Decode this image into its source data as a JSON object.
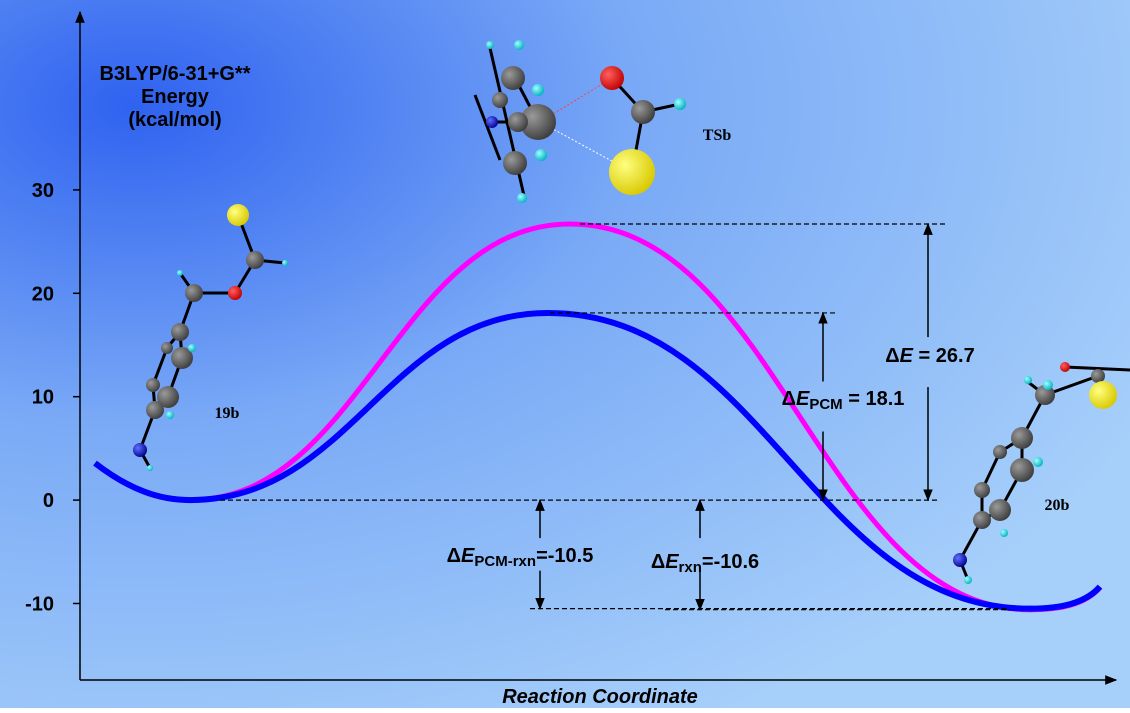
{
  "chart_data": {
    "type": "line",
    "y_label": [
      "B3LYP/6-31+G**",
      "Energy",
      "(kcal/mol)"
    ],
    "x_label": "Reaction Coordinate",
    "categories": [
      "19b",
      "TSb",
      "20b"
    ],
    "series": [
      {
        "color": "#ff00ff",
        "values": [
          0,
          26.7,
          -10.6
        ],
        "value_labels": [
          null,
          "ΔE = 26.7",
          "ΔErxn=-10.6"
        ]
      },
      {
        "color": "#0000ff",
        "values": [
          0,
          18.1,
          -10.5
        ],
        "value_labels": [
          null,
          "ΔEPCM = 18.1",
          "ΔEPCM-rxn=-10.5"
        ]
      }
    ],
    "ylim": [
      -17.4,
      47.4
    ],
    "yticks": [
      -10,
      0,
      10,
      20,
      30
    ]
  }
}
